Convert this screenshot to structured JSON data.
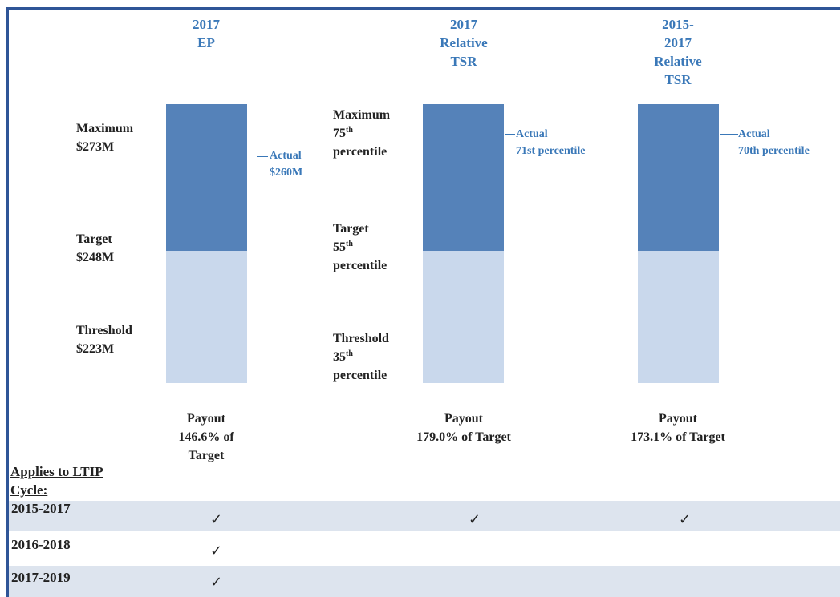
{
  "columns": [
    {
      "heading": [
        "2017",
        "EP"
      ],
      "levels": [
        {
          "name": "Maximum",
          "value": "$273M"
        },
        {
          "name": "Target",
          "value": "$248M"
        },
        {
          "name": "Threshold",
          "value": "$223M"
        }
      ],
      "actual": {
        "label": "Actual",
        "value": "$260M"
      },
      "payout": [
        "Payout",
        "146.6% of",
        "Target"
      ]
    },
    {
      "heading": [
        "2017",
        "Relative",
        "TSR"
      ],
      "levels": [
        {
          "name": "Maximum",
          "rank": "75",
          "suffix": "th",
          "unit": "percentile"
        },
        {
          "name": "Target",
          "rank": "55",
          "suffix": "th",
          "unit": "percentile"
        },
        {
          "name": "Threshold",
          "rank": "35",
          "suffix": "th",
          "unit": "percentile"
        }
      ],
      "actual": {
        "label": "Actual",
        "value": "71st percentile"
      },
      "payout": [
        "Payout",
        "179.0% of Target"
      ]
    },
    {
      "heading": [
        "2015-",
        "2017",
        "Relative",
        "TSR"
      ],
      "actual": {
        "label": "Actual",
        "value": "70th percentile"
      },
      "payout": [
        "Payout",
        "173.1% of Target"
      ]
    }
  ],
  "table": {
    "heading": [
      "Applies to LTIP",
      "Cycle:"
    ],
    "rows": [
      {
        "cycle": "2015-2017",
        "checks": [
          "✓",
          "✓",
          "✓"
        ]
      },
      {
        "cycle": "2016-2018",
        "checks": [
          "✓",
          null,
          null
        ]
      },
      {
        "cycle": "2017-2019",
        "checks": [
          "✓",
          null,
          null
        ]
      }
    ]
  }
}
